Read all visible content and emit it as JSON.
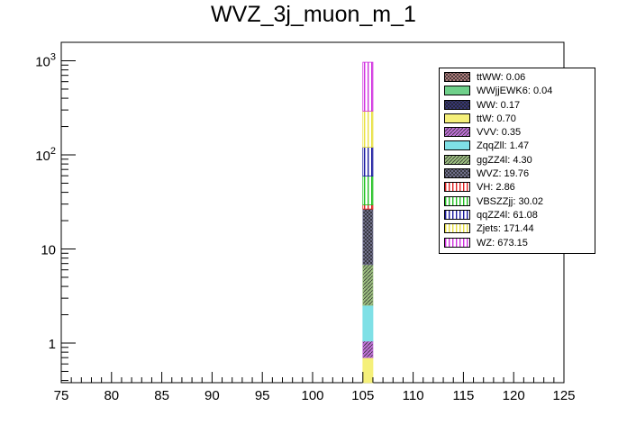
{
  "chart_data": {
    "type": "bar",
    "title": "WVZ_3j_muon_m_1",
    "xlabel": "",
    "ylabel": "",
    "xlim": [
      75,
      125
    ],
    "ylim": [
      0.4,
      1500
    ],
    "log_y": true,
    "bin": [
      105,
      106
    ],
    "x_ticks": [
      "75",
      "80",
      "85",
      "90",
      "95",
      "100",
      "105",
      "110",
      "115",
      "120",
      "125"
    ],
    "y_ticks": [
      "1",
      "10",
      "10²",
      "10³"
    ],
    "legend_position": "top-right",
    "stack_order": [
      "ttW",
      "VVV",
      "ZqqZll",
      "ggZZ4l",
      "WVZ",
      "VH",
      "VBSZZjj",
      "qqZZ4l",
      "Zjets",
      "WZ",
      "WW",
      "WWjjEWK6",
      "ttWW"
    ],
    "series": [
      {
        "name": "ttWW",
        "label": "ttWW: 0.06",
        "value": 0.06,
        "color": "#c48a8a",
        "pattern": "cross"
      },
      {
        "name": "WWjjEWK6",
        "label": "WWjjEWK6: 0.04",
        "value": 0.04,
        "color": "#6fd08a",
        "pattern": "solid"
      },
      {
        "name": "WW",
        "label": "WW: 0.17",
        "value": 0.17,
        "color": "#3a3a80",
        "pattern": "cross"
      },
      {
        "name": "ttW",
        "label": "ttW: 0.70",
        "value": 0.7,
        "color": "#f5f07a",
        "pattern": "solid"
      },
      {
        "name": "VVV",
        "label": "VVV: 0.35",
        "value": 0.35,
        "color": "#c070d8",
        "pattern": "hatch"
      },
      {
        "name": "ZqqZll",
        "label": "ZqqZll: 1.47",
        "value": 1.47,
        "color": "#7fe0e6",
        "pattern": "solid"
      },
      {
        "name": "ggZZ4l",
        "label": "ggZZ4l: 4.30",
        "value": 4.3,
        "color": "#9cc080",
        "pattern": "hatch"
      },
      {
        "name": "WVZ",
        "label": "WVZ: 19.76",
        "value": 19.76,
        "color": "#7a7a9a",
        "pattern": "cross"
      },
      {
        "name": "VH",
        "label": "VH: 2.86",
        "value": 2.86,
        "color": "#e02020",
        "pattern": "vline"
      },
      {
        "name": "VBSZZjj",
        "label": "VBSZZjj: 30.02",
        "value": 30.02,
        "color": "#20c020",
        "pattern": "vline"
      },
      {
        "name": "qqZZ4l",
        "label": "qqZZ4l: 61.08",
        "value": 61.08,
        "color": "#1a1aa0",
        "pattern": "vline"
      },
      {
        "name": "Zjets",
        "label": "Zjets: 171.44",
        "value": 171.44,
        "color": "#e8e040",
        "pattern": "vline"
      },
      {
        "name": "WZ",
        "label": "WZ: 673.15",
        "value": 673.15,
        "color": "#d030e0",
        "pattern": "vline"
      }
    ]
  }
}
